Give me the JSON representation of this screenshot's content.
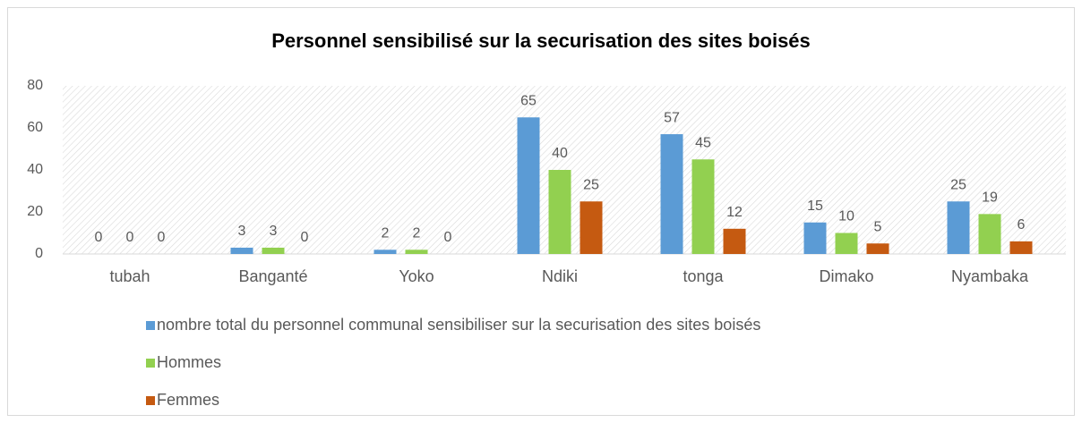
{
  "chart_data": {
    "type": "bar",
    "title": "Personnel sensibilisé sur la securisation des sites boisés",
    "categories": [
      "tubah",
      "Banganté",
      "Yoko",
      "Ndiki",
      "tonga",
      "Dimako",
      "Nyambaka"
    ],
    "series": [
      {
        "name": "nombre total du  personnel communal sensibiliser sur la securisation des sites boisés",
        "color": "#5b9bd5",
        "values": [
          0,
          3,
          2,
          65,
          57,
          15,
          25
        ]
      },
      {
        "name": "Hommes",
        "color": "#92d050",
        "values": [
          0,
          3,
          2,
          40,
          45,
          10,
          19
        ]
      },
      {
        "name": "Femmes",
        "color": "#c55a11",
        "values": [
          0,
          0,
          0,
          25,
          12,
          5,
          6
        ]
      }
    ],
    "ylim": [
      0,
      80
    ],
    "yticks": [
      0,
      20,
      40,
      60,
      80
    ],
    "grid": false,
    "legend": "bottom"
  }
}
